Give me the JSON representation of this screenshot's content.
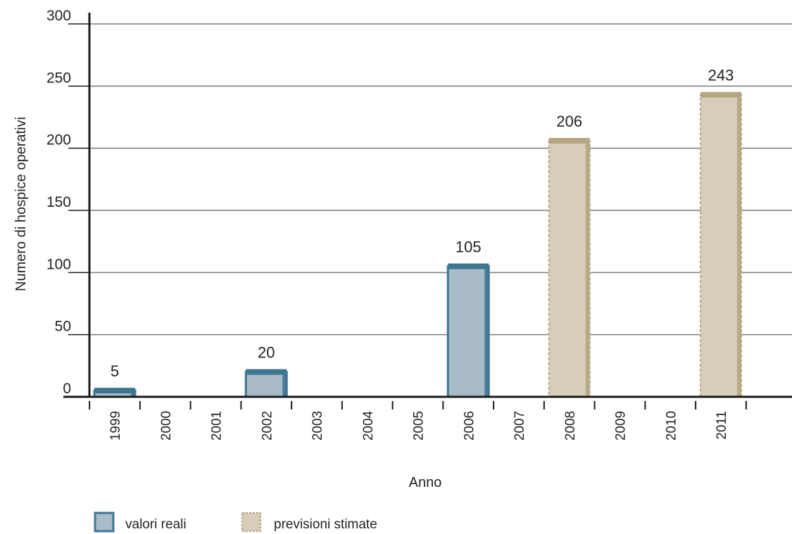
{
  "chart_data": {
    "type": "bar",
    "categories": [
      "1999",
      "2000",
      "2001",
      "2002",
      "2003",
      "2004",
      "2005",
      "2006",
      "2007",
      "2008",
      "2009",
      "2010",
      "2011"
    ],
    "series": [
      {
        "name": "valori reali",
        "values": [
          5,
          null,
          null,
          20,
          null,
          null,
          null,
          105,
          null,
          null,
          null,
          null,
          null
        ],
        "color": "#a9bac8",
        "edge_color": "#3d7693"
      },
      {
        "name": "previsioni stimate",
        "values": [
          null,
          null,
          null,
          null,
          null,
          null,
          null,
          null,
          null,
          206,
          null,
          null,
          243
        ],
        "color": "#d8cdb8",
        "edge_color": "#b5a582"
      }
    ],
    "data_labels": [
      "5",
      "",
      "",
      "20",
      "",
      "",
      "",
      "105",
      "",
      "206",
      "",
      "",
      "243"
    ],
    "xlabel": "Anno",
    "ylabel": "Numero di hospice operativi",
    "ylim": [
      0,
      300
    ],
    "yticks": [
      "0",
      "50",
      "100",
      "150",
      "200",
      "250",
      "300"
    ],
    "grid": true,
    "legend_position": "bottom-left"
  }
}
